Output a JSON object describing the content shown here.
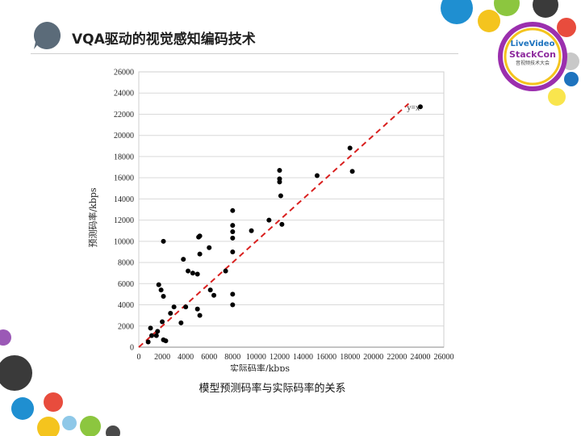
{
  "slide": {
    "title": "VQA驱动的视觉感知编码技术",
    "caption": "模型预测码率与实际码率的关系"
  },
  "logo": {
    "line1": "LiveVideo",
    "line2": "StackCon",
    "line3": "音视频技术大会"
  },
  "chart_data": {
    "type": "scatter",
    "xlabel": "实际码率/kbps",
    "ylabel": "预测码率/kbps",
    "xlim": [
      0,
      26000
    ],
    "ylim": [
      0,
      26000
    ],
    "xticks": [
      0,
      2000,
      4000,
      6000,
      8000,
      10000,
      12000,
      14000,
      16000,
      18000,
      20000,
      22000,
      24000,
      26000
    ],
    "yticks": [
      0,
      2000,
      4000,
      6000,
      8000,
      10000,
      12000,
      14000,
      16000,
      18000,
      20000,
      22000,
      24000,
      26000
    ],
    "grid": "horizontal",
    "reference_line": {
      "label": "y=x",
      "from": [
        0,
        0
      ],
      "to": [
        23000,
        23000
      ],
      "color": "#d9201f",
      "style": "dashed"
    },
    "point_color": "#000000",
    "points": [
      [
        800,
        500
      ],
      [
        1000,
        1800
      ],
      [
        1100,
        1100
      ],
      [
        1500,
        1100
      ],
      [
        1600,
        1500
      ],
      [
        1700,
        5900
      ],
      [
        1900,
        5400
      ],
      [
        2000,
        2400
      ],
      [
        2100,
        700
      ],
      [
        2100,
        4800
      ],
      [
        2100,
        10000
      ],
      [
        2300,
        600
      ],
      [
        2700,
        3200
      ],
      [
        3000,
        3800
      ],
      [
        3600,
        2300
      ],
      [
        3800,
        8300
      ],
      [
        4000,
        3800
      ],
      [
        4200,
        7200
      ],
      [
        4600,
        7000
      ],
      [
        5000,
        6900
      ],
      [
        5000,
        3600
      ],
      [
        5100,
        10400
      ],
      [
        5200,
        10500
      ],
      [
        5200,
        3000
      ],
      [
        5200,
        8800
      ],
      [
        6000,
        9400
      ],
      [
        6100,
        5400
      ],
      [
        6400,
        4900
      ],
      [
        7400,
        7200
      ],
      [
        8000,
        12900
      ],
      [
        8000,
        11500
      ],
      [
        8000,
        10900
      ],
      [
        8000,
        10300
      ],
      [
        8000,
        9000
      ],
      [
        8000,
        5000
      ],
      [
        8000,
        4000
      ],
      [
        9600,
        11000
      ],
      [
        11100,
        12000
      ],
      [
        12000,
        16700
      ],
      [
        12000,
        15900
      ],
      [
        12000,
        15600
      ],
      [
        12100,
        14300
      ],
      [
        12200,
        11600
      ],
      [
        15200,
        16200
      ],
      [
        18000,
        18800
      ],
      [
        18200,
        16600
      ],
      [
        24000,
        22700
      ]
    ]
  }
}
